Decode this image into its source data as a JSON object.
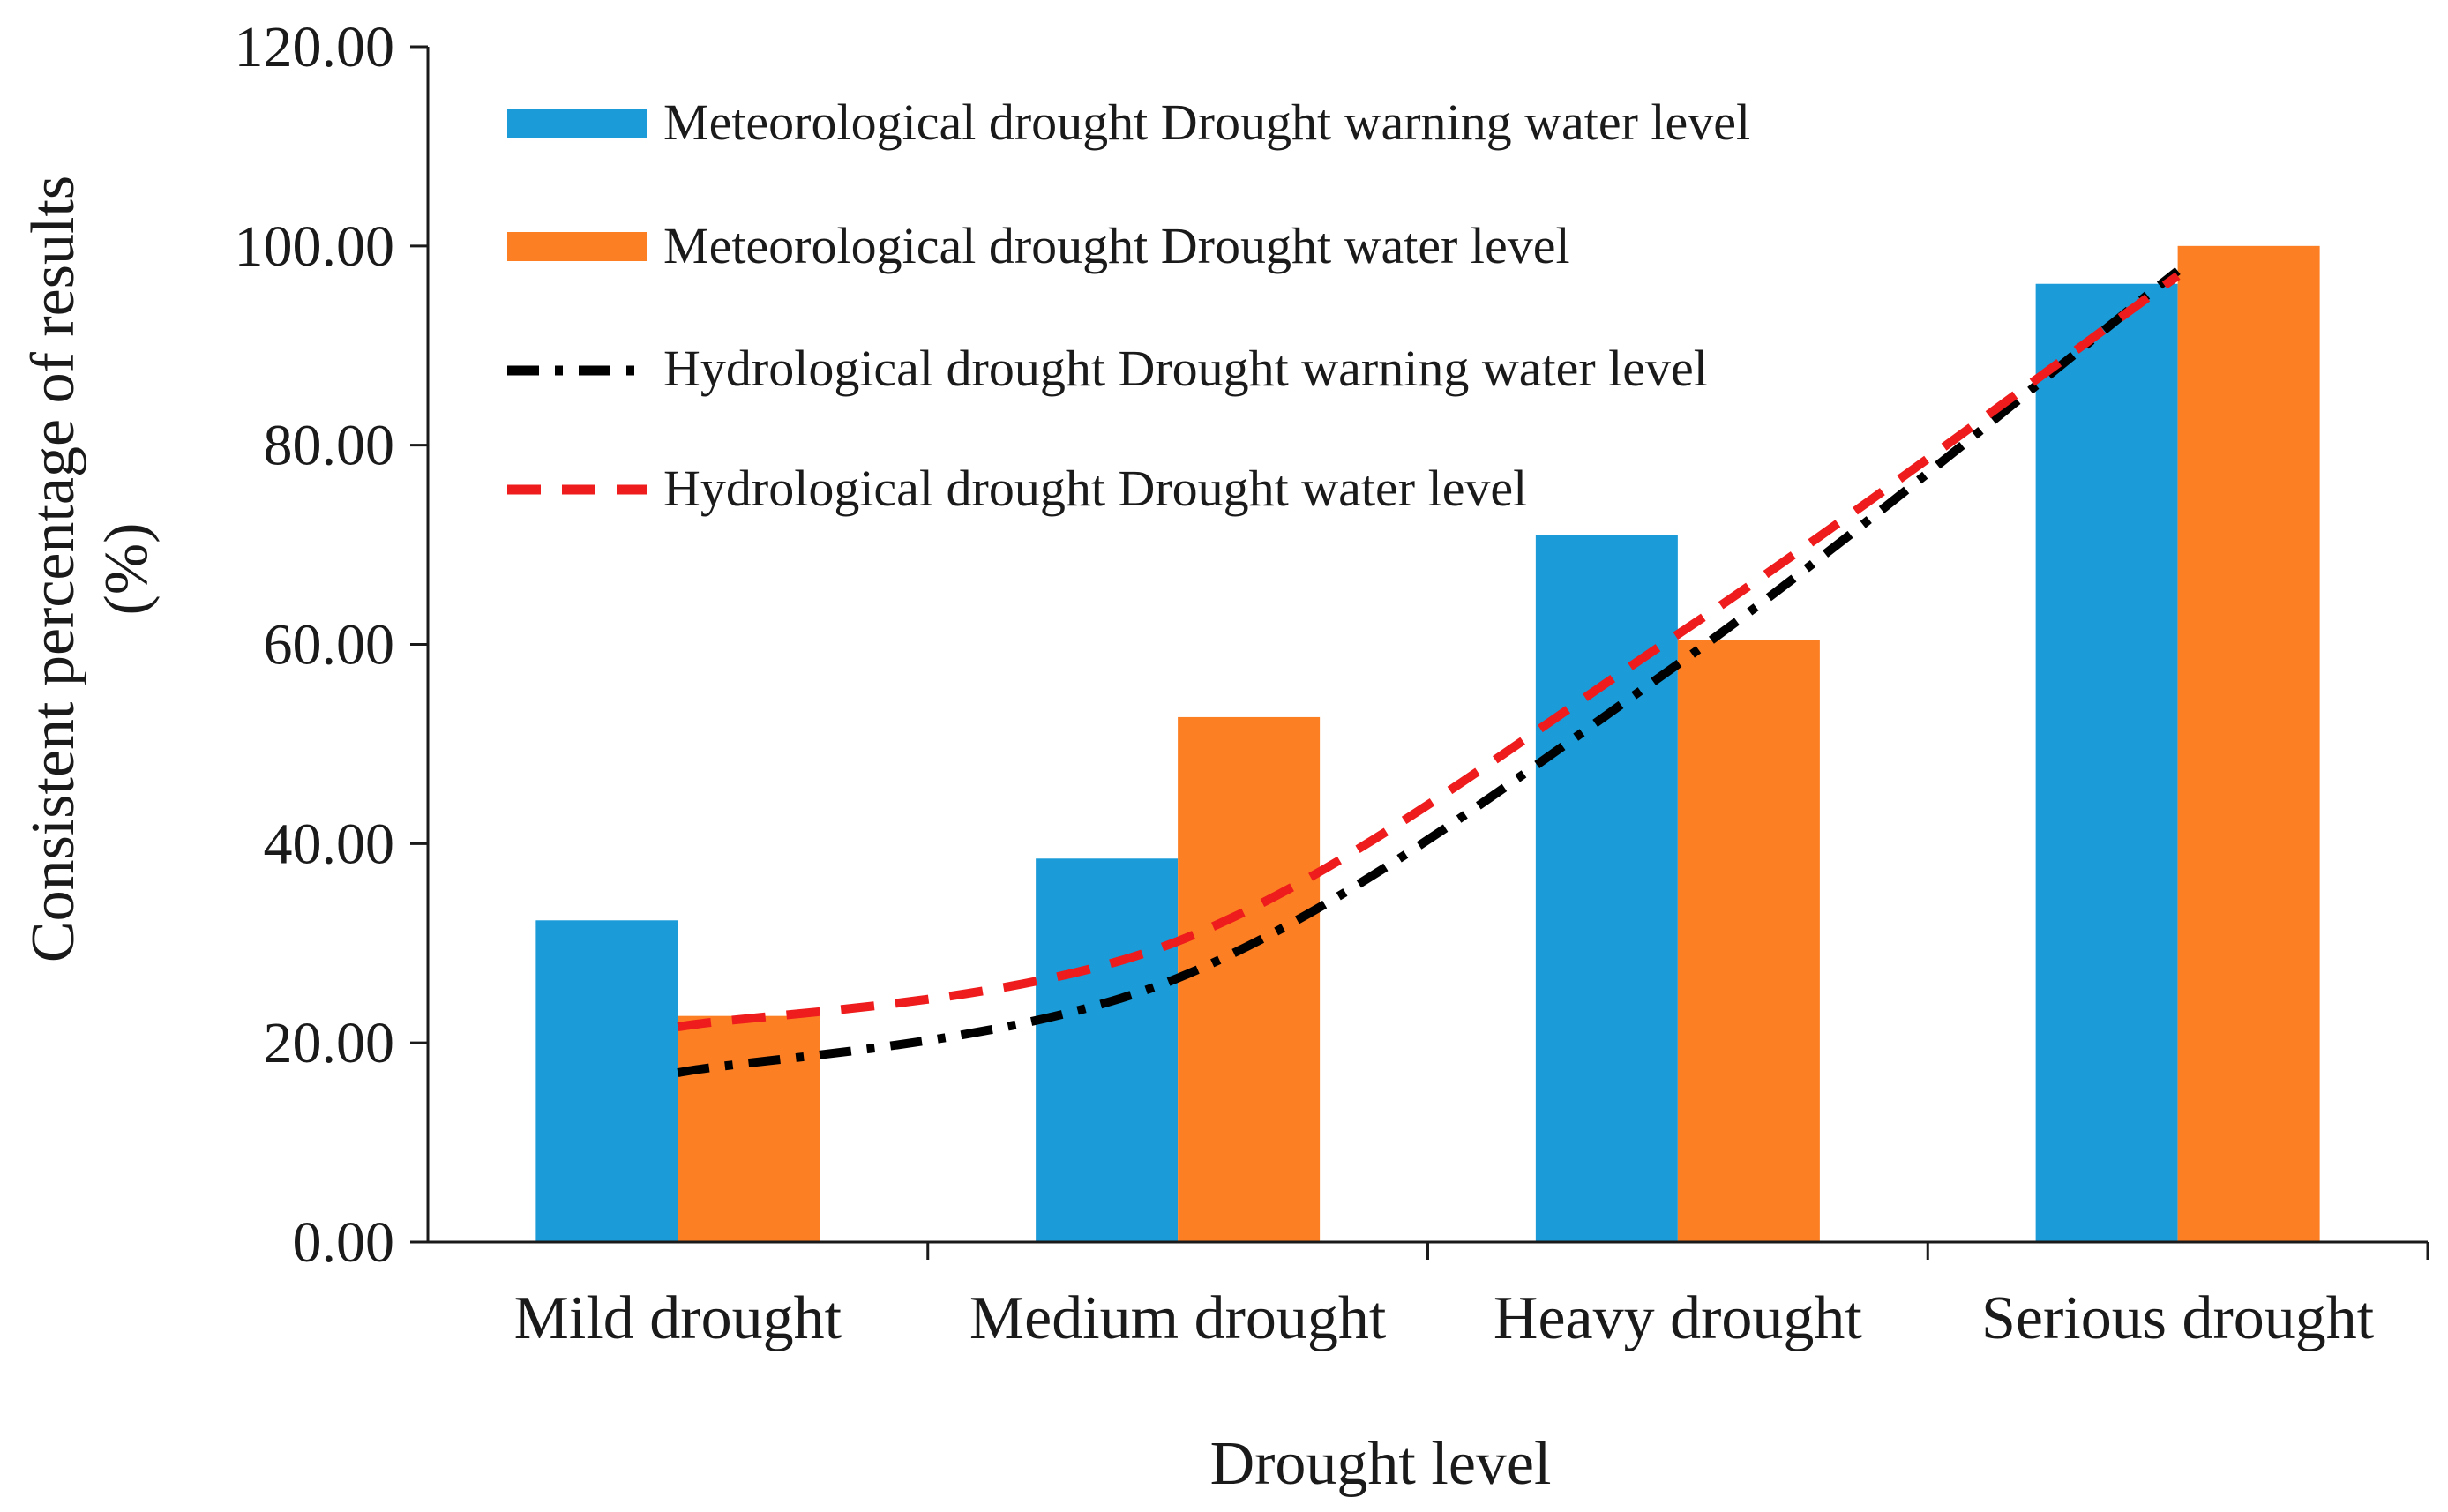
{
  "chart_data": {
    "type": "bar",
    "title": "",
    "xlabel": "Drought level",
    "ylabel": "Consistent percentage of results",
    "ylabel_unit": "(%)",
    "ylim": [
      0,
      120
    ],
    "yticks": [
      0,
      20,
      40,
      60,
      80,
      100,
      120
    ],
    "ytick_labels": [
      "0.00",
      "20.00",
      "40.00",
      "60.00",
      "80.00",
      "100.00",
      "120.00"
    ],
    "grid": false,
    "legend_position": "top-left",
    "categories": [
      "Mild drought",
      "Medium drought",
      "Heavy drought",
      "Serious drought"
    ],
    "series": [
      {
        "name": "Meteorological drought Drought warning water level",
        "kind": "bar",
        "color": "#1b9bd8",
        "values": [
          32.3,
          38.5,
          71.0,
          96.2
        ]
      },
      {
        "name": "Meteorological drought Drought water level",
        "kind": "bar",
        "color": "#fd7f23",
        "values": [
          22.7,
          52.7,
          60.4,
          100.0
        ]
      },
      {
        "name": "Hydrological drought Drought warning water level",
        "kind": "line",
        "style": "dash-dot",
        "color": "#000000",
        "values": [
          17.0,
          26.5,
          58.0,
          97.5
        ]
      },
      {
        "name": "Hydrological drought Drought water level",
        "kind": "line",
        "style": "dash",
        "color": "#ee1c1c",
        "values": [
          21.6,
          30.2,
          61.0,
          97.0
        ]
      }
    ]
  }
}
